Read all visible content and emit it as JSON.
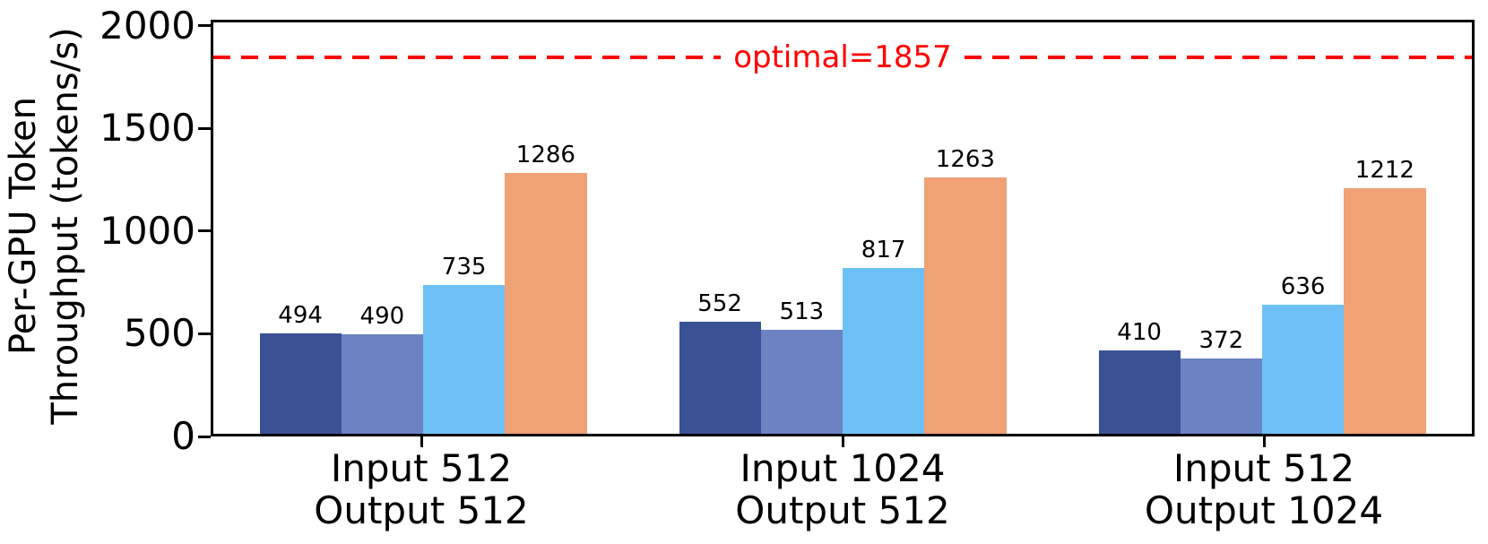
{
  "chart_data": {
    "type": "bar",
    "title": "",
    "ylabel": "Per-GPU Token Throughput (tokens/s)",
    "ylabel_lines": [
      "Per-GPU Token",
      "Throughput (tokens/s)"
    ],
    "categories": [
      [
        "Input 512",
        "Output 512"
      ],
      [
        "Input 1024",
        "Output 512"
      ],
      [
        "Input 512",
        "Output 1024"
      ]
    ],
    "series": [
      {
        "name": "series-1",
        "color": "#3A5295",
        "values": [
          494,
          552,
          410
        ]
      },
      {
        "name": "series-2",
        "color": "#6C83C3",
        "values": [
          490,
          513,
          372
        ]
      },
      {
        "name": "series-3",
        "color": "#6EC1F6",
        "values": [
          735,
          817,
          636
        ]
      },
      {
        "name": "series-4",
        "color": "#F0A175",
        "values": [
          1286,
          1263,
          1212
        ]
      }
    ],
    "bar_value_labels": [
      [
        494,
        490,
        735,
        1286
      ],
      [
        552,
        513,
        817,
        1263
      ],
      [
        410,
        372,
        636,
        1212
      ]
    ],
    "yticks": [
      0,
      500,
      1000,
      1500,
      2000
    ],
    "ylim": [
      0,
      2030
    ],
    "reference_line": {
      "value": 1857,
      "label": "optimal=1857",
      "color": "#FF0000",
      "style": "dashed"
    },
    "legend": "none",
    "grid": false,
    "colors": {
      "axis": "#000000",
      "background": "#FFFFFF",
      "text": "#000000"
    }
  }
}
